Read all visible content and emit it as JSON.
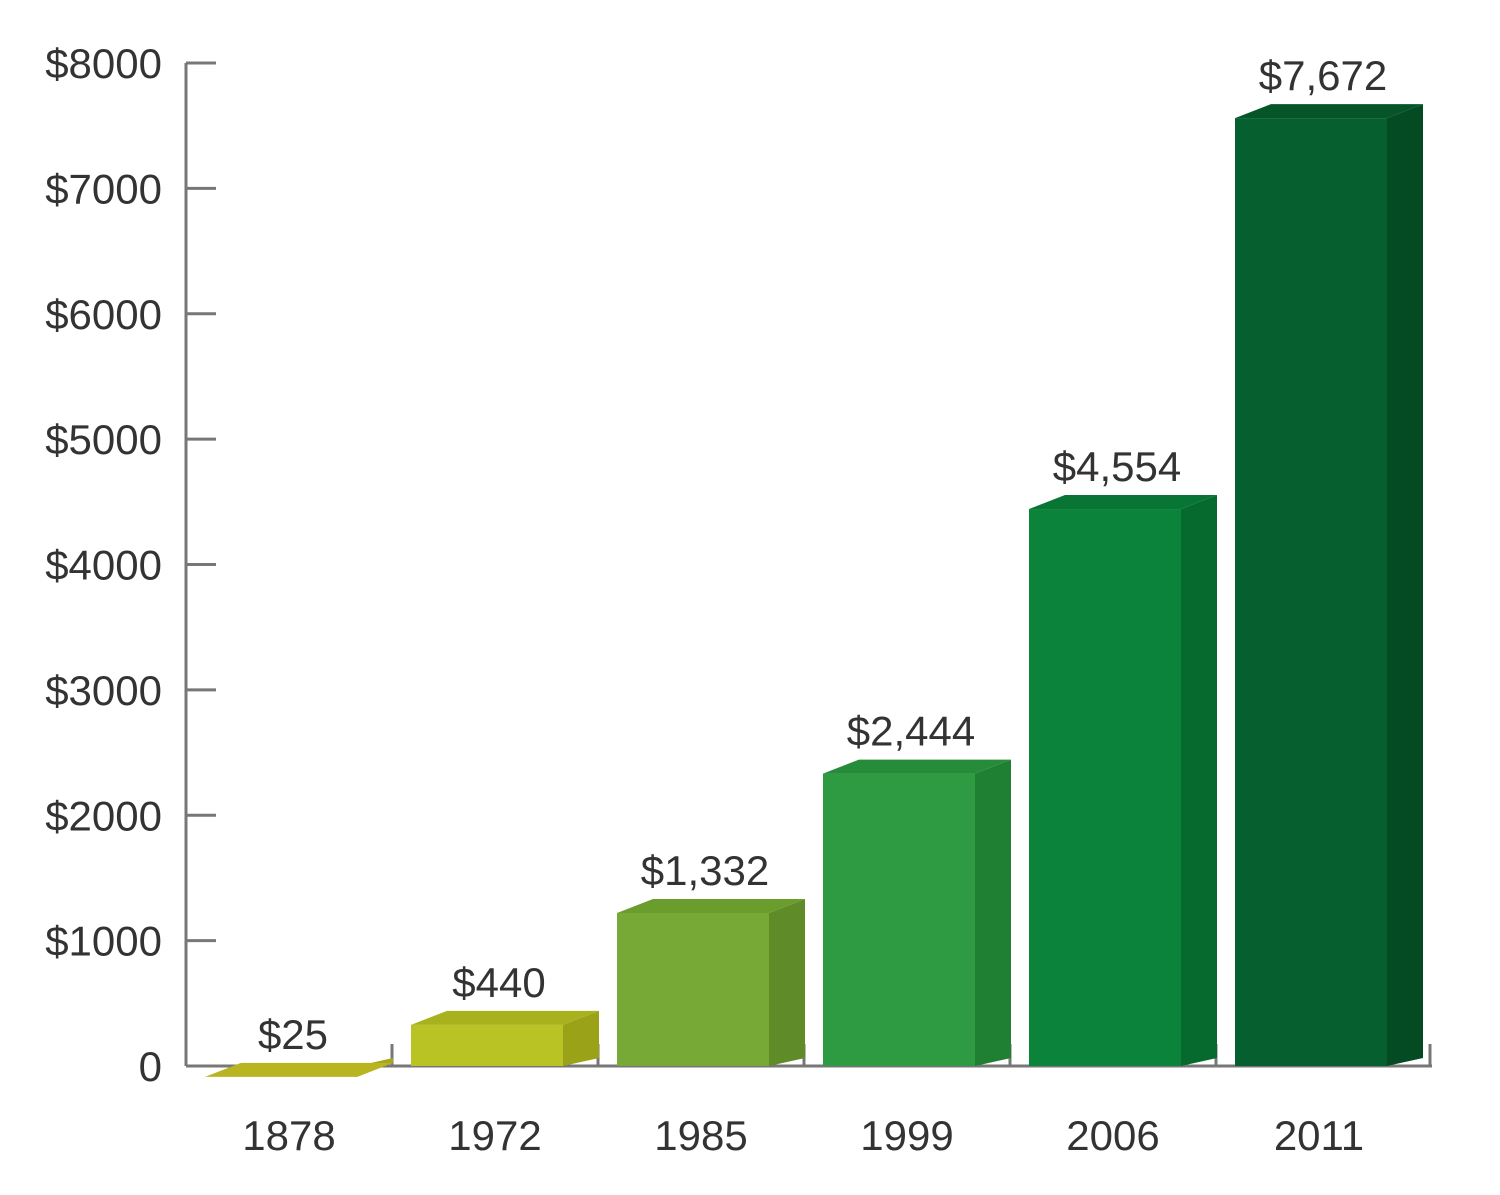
{
  "chart_data": {
    "type": "bar",
    "categories": [
      "1878",
      "1972",
      "1985",
      "1999",
      "2006",
      "2011"
    ],
    "values": [
      25,
      440,
      1332,
      2444,
      4554,
      7672
    ],
    "data_labels": [
      "$25",
      "$440",
      "$1,332",
      "$2,444",
      "$4,554",
      "$7,672"
    ],
    "y_ticks": [
      0,
      1000,
      2000,
      3000,
      4000,
      5000,
      6000,
      7000,
      8000
    ],
    "y_tick_labels": [
      "0",
      "$1000",
      "$2000",
      "$3000",
      "$4000",
      "$5000",
      "$6000",
      "$7000",
      "$8000"
    ],
    "ylim": [
      0,
      8000
    ],
    "title": "",
    "xlabel": "",
    "ylabel": "",
    "grid": false,
    "legend": "none",
    "bar_colors": [
      {
        "front": "#c9c62a",
        "side": "#a9a51c",
        "top": "#b8b520"
      },
      {
        "front": "#b9c324",
        "side": "#9aa318",
        "top": "#a8b21e"
      },
      {
        "front": "#76a935",
        "side": "#5f8c28",
        "top": "#6a9c2e"
      },
      {
        "front": "#2e9a41",
        "side": "#1f7f33",
        "top": "#268c3a"
      },
      {
        "front": "#0b833a",
        "side": "#06692d",
        "top": "#097534"
      },
      {
        "front": "#065f2e",
        "side": "#044a23",
        "top": "#055528"
      }
    ],
    "axis_color": "#777777"
  }
}
